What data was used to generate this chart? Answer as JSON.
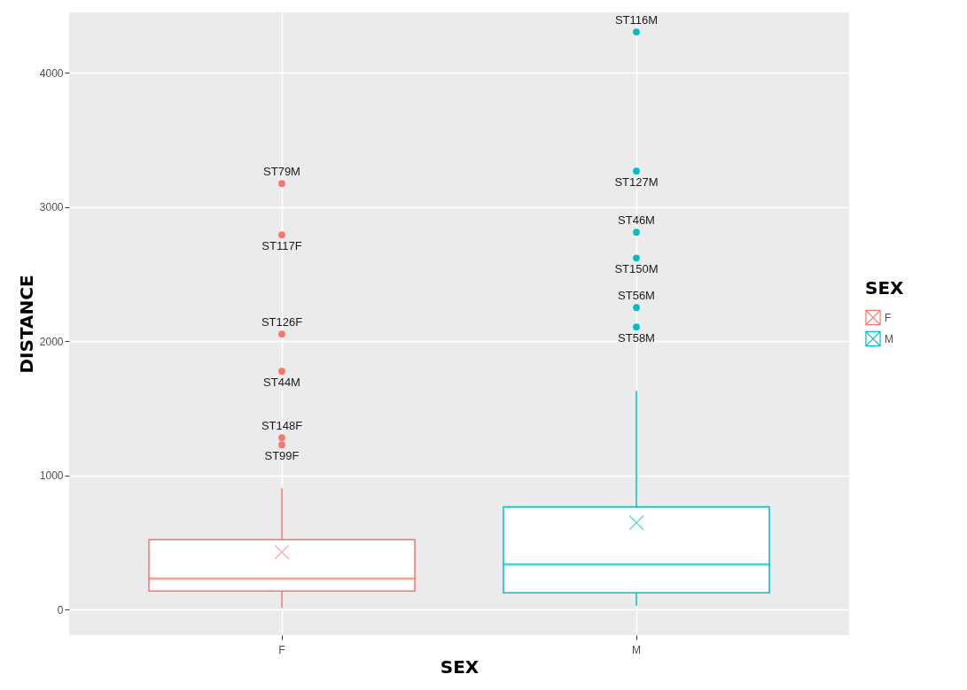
{
  "chart_data": {
    "type": "box",
    "xlabel": "SEX",
    "ylabel": "DISTANCE",
    "legend_title": "SEX",
    "legend": "right",
    "grid": true,
    "categories": [
      "F",
      "M"
    ],
    "ylim": [
      -190,
      4450
    ],
    "yticks": [
      0,
      1000,
      2000,
      3000,
      4000
    ],
    "series": [
      {
        "type": "box",
        "name": "F",
        "color": "#f8766d",
        "boxes": [
          {
            "low": 13,
            "q1": 139,
            "median": 231,
            "q3": 521,
            "high": 904,
            "mean": 429
          },
          null
        ]
      },
      {
        "type": "box",
        "name": "M",
        "color": "#00bfc4",
        "boxes": [
          null,
          {
            "low": 26,
            "q1": 125,
            "median": 337,
            "q3": 766,
            "high": 1630,
            "mean": 647
          }
        ]
      },
      {
        "type": "scatter",
        "x": [
          "F",
          "F",
          "F",
          "F",
          "F",
          "F",
          "M",
          "M",
          "M",
          "M",
          "M",
          "M"
        ],
        "values": [
          3175,
          2792,
          2053,
          1776,
          1281,
          1228,
          4304,
          3267,
          2812,
          2620,
          2251,
          2106
        ],
        "colors": [
          "#f8766d",
          "#f8766d",
          "#f8766d",
          "#f8766d",
          "#f8766d",
          "#f8766d",
          "#00bfc4",
          "#00bfc4",
          "#00bfc4",
          "#00bfc4",
          "#00bfc4",
          "#00bfc4"
        ],
        "value_labels": [
          "ST79M",
          "ST117F",
          "ST126F",
          "ST44M",
          "ST148F",
          "ST99F",
          "ST116M",
          "ST127M",
          "ST46M",
          "ST150M",
          "ST56M",
          "ST58M"
        ]
      }
    ]
  }
}
